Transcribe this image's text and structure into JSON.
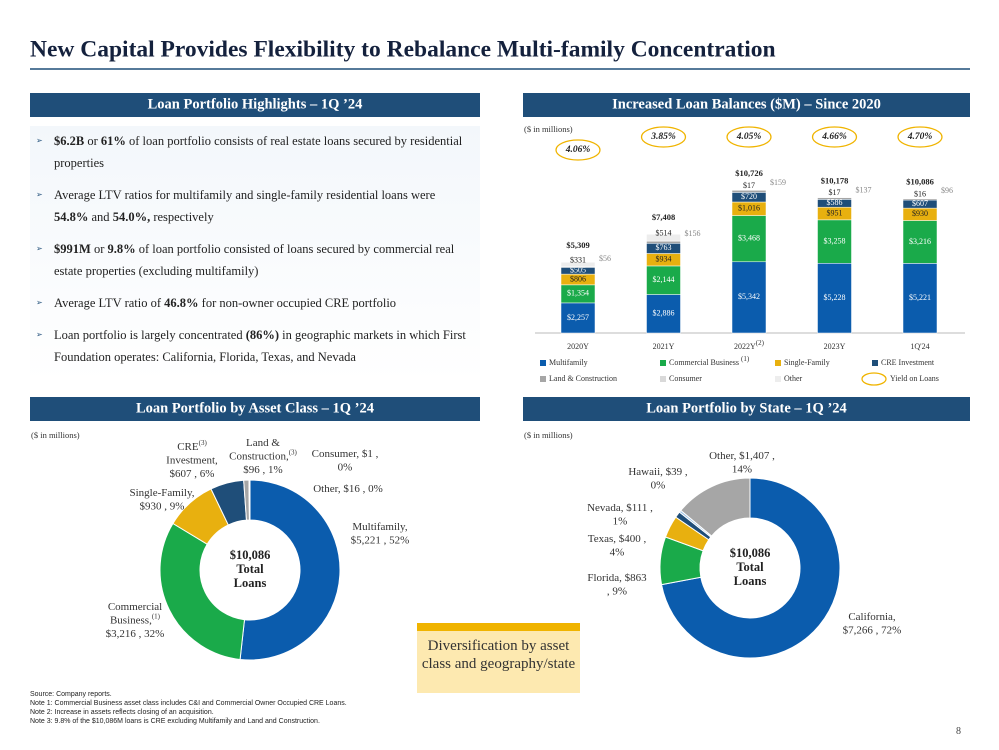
{
  "title": "New Capital Provides Flexibility to Rebalance Multi-family Concentration",
  "highlights": {
    "header": "Loan Portfolio Highlights – 1Q ’24",
    "bullets": [
      [
        {
          "t": "$6.2B",
          "b": true
        },
        {
          "t": " or "
        },
        {
          "t": "61%",
          "b": true
        },
        {
          "t": " of loan portfolio consists of real estate loans secured by residential properties"
        }
      ],
      [
        {
          "t": "Average LTV ratios for multifamily and single-family residential loans were "
        },
        {
          "t": "54.8%",
          "b": true
        },
        {
          "t": " and "
        },
        {
          "t": "54.0%,",
          "b": true
        },
        {
          "t": " respectively"
        }
      ],
      [
        {
          "t": "$991M",
          "b": true
        },
        {
          "t": " or "
        },
        {
          "t": "9.8%",
          "b": true
        },
        {
          "t": " of loan portfolio consisted of loans secured by commercial real estate properties (excluding multifamily)"
        }
      ],
      [
        {
          "t": "Average LTV ratio of "
        },
        {
          "t": "46.8%",
          "b": true
        },
        {
          "t": " for non-owner occupied CRE portfolio"
        }
      ],
      [
        {
          "t": "Loan portfolio is largely concentrated "
        },
        {
          "t": "(86%)",
          "b": true
        },
        {
          "t": " in geographic markets in which First Foundation operates: California, Florida, Texas, and Nevada"
        }
      ]
    ]
  },
  "chart_data": [
    {
      "type": "bar",
      "stacked": true,
      "title": "Increased Loan Balances ($M) – Since 2020",
      "unit_note": "($ in millions)",
      "categories": [
        "2020Y",
        "2021Y",
        "2022Y",
        "2023Y",
        "1Q'24"
      ],
      "category_notes": [
        null,
        null,
        "(2)",
        null,
        null
      ],
      "series": [
        {
          "name": "Multifamily",
          "color": "#0b5cad",
          "values": [
            2257,
            2886,
            5342,
            5228,
            5221
          ],
          "value_labels": [
            "$2,257",
            "$2,886",
            "$5,342",
            "$5,228",
            "$5,221"
          ]
        },
        {
          "name": "Commercial Business",
          "note": "(1)",
          "color": "#1aaa4a",
          "values": [
            1354,
            2144,
            3468,
            3258,
            3216
          ],
          "value_labels": [
            "$1,354",
            "$2,144",
            "$3,468",
            "$3,258",
            "$3,216"
          ]
        },
        {
          "name": "Single-Family",
          "color": "#e8b00f",
          "values": [
            806,
            934,
            1016,
            951,
            930
          ],
          "value_labels": [
            "$806",
            "$934",
            "$1,016",
            "$951",
            "$930"
          ]
        },
        {
          "name": "CRE Investment",
          "color": "#1f4e79",
          "values": [
            505,
            763,
            720,
            586,
            607
          ],
          "value_labels": [
            "$505",
            "$763",
            "$720",
            "$586",
            "$607"
          ]
        },
        {
          "name": "Land & Construction",
          "color": "#a6a6a6",
          "values": [
            56,
            156,
            159,
            137,
            96
          ],
          "value_labels": [
            "$56",
            "$156",
            "$159",
            "$137",
            "$96"
          ]
        },
        {
          "name": "Consumer",
          "color": "#d9d9d9",
          "values": [
            0,
            11,
            4,
            1,
            1
          ]
        },
        {
          "name": "Other",
          "color": "#ededed",
          "values": [
            331,
            514,
            17,
            17,
            16
          ],
          "value_labels": [
            "$331",
            "$514",
            "$17",
            "$17",
            "$16"
          ]
        }
      ],
      "totals": [
        5309,
        7408,
        10726,
        10178,
        10086
      ],
      "total_labels": [
        "$5,309",
        "$7,408",
        "$10,726",
        "$10,178",
        "$10,086"
      ],
      "yield": {
        "name": "Yield on Loans",
        "color": "#f0b400",
        "values": [
          4.06,
          3.85,
          4.05,
          4.66,
          4.7
        ],
        "value_labels": [
          "4.06%",
          "3.85%",
          "4.05%",
          "4.66%",
          "4.70%"
        ]
      }
    },
    {
      "type": "pie",
      "donut": true,
      "title": "Loan Portfolio by Asset Class – 1Q ’24",
      "unit_note": "($ in millions)",
      "center_label": [
        "$10,086",
        "Total",
        "Loans"
      ],
      "values": [
        5221,
        3216,
        930,
        607,
        96,
        1,
        16
      ],
      "colors": [
        "#0b5cad",
        "#1aaa4a",
        "#e8b00f",
        "#1f4e79",
        "#a6a6a6",
        "#d9d9d9",
        "#f2f2f2"
      ],
      "slice_labels": [
        [
          {
            "t": "Multifamily,"
          },
          {
            "t": "$5,221 , 52%"
          }
        ],
        [
          {
            "t": "Commercial"
          },
          {
            "t": "Business,",
            "sup": "(1)"
          },
          {
            "t": "$3,216 , 32%"
          }
        ],
        [
          {
            "t": "Single-Family,"
          },
          {
            "t": "$930 , 9%"
          }
        ],
        [
          {
            "t": "CRE",
            "sup": "(3)"
          },
          {
            "t": "Investment,"
          },
          {
            "t": "$607 , 6%"
          }
        ],
        [
          {
            "t": "Land &"
          },
          {
            "t": "Construction,",
            "sup": "(3)"
          },
          {
            "t": "$96 , 1%"
          }
        ],
        [
          {
            "t": "Consumer, $1 ,"
          },
          {
            "t": "0%"
          }
        ],
        [
          {
            "t": "Other, $16 , 0%"
          }
        ]
      ]
    },
    {
      "type": "pie",
      "donut": true,
      "title": "Loan Portfolio by State – 1Q ’24",
      "unit_note": "($ in millions)",
      "center_label": [
        "$10,086",
        "Total",
        "Loans"
      ],
      "values": [
        7266,
        863,
        400,
        111,
        39,
        1407
      ],
      "colors": [
        "#0b5cad",
        "#1aaa4a",
        "#e8b00f",
        "#1f4e79",
        "#9dc3e6",
        "#a6a6a6"
      ],
      "slice_labels": [
        [
          {
            "t": "California,"
          },
          {
            "t": "$7,266 , 72%"
          }
        ],
        [
          {
            "t": "Florida, $863"
          },
          {
            "t": ", 9%"
          }
        ],
        [
          {
            "t": "Texas, $400 ,"
          },
          {
            "t": "4%"
          }
        ],
        [
          {
            "t": "Nevada, $111 ,"
          },
          {
            "t": "1%"
          }
        ],
        [
          {
            "t": "Hawaii, $39 ,"
          },
          {
            "t": "0%"
          }
        ],
        [
          {
            "t": "Other, $1,407 ,"
          },
          {
            "t": "14%"
          }
        ]
      ]
    }
  ],
  "callout": "Diversification by asset class and geography/state",
  "footnotes": [
    "Source: Company reports.",
    "Note 1: Commercial Business asset class includes C&I and Commercial Owner Occupied CRE Loans.",
    "Note 2: Increase in assets reflects closing of an acquisition.",
    "Note 3: 9.8% of the $10,086M loans is CRE excluding Multifamily and Land and Construction."
  ],
  "page_number": 8
}
